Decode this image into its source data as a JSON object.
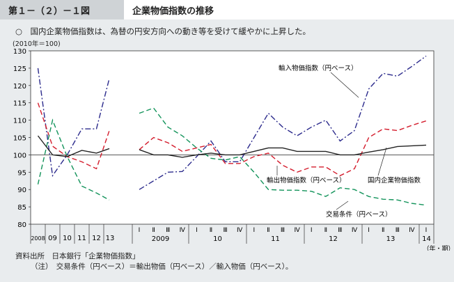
{
  "header": {
    "figure_number": "第１－（２）－１図",
    "title": "企業物価指数の推移"
  },
  "subtitle": "○　国内企業物価指数は、為替の円安方向への動き等を受けて緩やかに上昇した。",
  "unit": "(2010年＝100)",
  "source": "資料出所　日本銀行「企業物価指数」",
  "note": "（注）　交易条件（円ベース）＝輸出物価（円ベース）／輸入物価（円ベース）。",
  "chart_data": {
    "type": "line",
    "ylim": [
      80,
      130
    ],
    "yticks": [
      80,
      85,
      90,
      95,
      100,
      105,
      110,
      115,
      120,
      125,
      130
    ],
    "x_unit_label": "（年・期）",
    "annual_categories": [
      "2008",
      "09",
      "10",
      "11",
      "12",
      "13"
    ],
    "quarter_labels": [
      "Ⅰ",
      "Ⅱ",
      "Ⅲ",
      "Ⅳ"
    ],
    "quarter_years": [
      "2009",
      "10",
      "11",
      "12",
      "13",
      "14"
    ],
    "quarter_count": 21,
    "series": [
      {
        "name": "輸入物価指数（円ベース）",
        "color": "#2b2a8c",
        "dash": "dashdot",
        "annual": [
          125,
          94,
          100,
          107.5,
          107.5,
          122
        ],
        "quarterly": [
          90,
          92.5,
          95,
          95.2,
          99.5,
          104,
          98,
          98,
          105,
          112,
          108,
          105.5,
          108,
          110,
          104,
          107,
          119,
          123.5,
          122.7,
          125.5,
          128.5
        ]
      },
      {
        "name": "輸出物価指数（円ベース）",
        "color": "#d41c2c",
        "dash": "dash",
        "annual": [
          115,
          102.5,
          99.5,
          98,
          96,
          107
        ],
        "quarterly": [
          101.5,
          105,
          103.5,
          101,
          102,
          103,
          97.5,
          97.5,
          99.5,
          100.5,
          97,
          95,
          96.5,
          96.5,
          94,
          96,
          105,
          107.5,
          107,
          108.5,
          109.8
        ]
      },
      {
        "name": "交易条件（円ベース）",
        "color": "#12935a",
        "dash": "dash",
        "annual": [
          91.5,
          110,
          99.5,
          91,
          89,
          87
        ],
        "quarterly": [
          112,
          113.5,
          108,
          105.5,
          102,
          99,
          98.5,
          99.5,
          95,
          90,
          89.8,
          89.8,
          89.5,
          88,
          90.5,
          90,
          88,
          87.2,
          87,
          86,
          85.5
        ]
      },
      {
        "name": "国内企業物価指数",
        "color": "#222222",
        "dash": "solid",
        "annual": [
          105.5,
          100,
          99.5,
          101.3,
          100.5,
          101.8
        ],
        "quarterly": [
          101.5,
          100,
          100,
          99.3,
          100,
          100.5,
          100,
          100,
          101,
          102,
          102,
          101,
          101,
          101,
          100,
          100,
          100.8,
          101.5,
          102.4,
          102.6,
          102.8
        ]
      }
    ]
  }
}
